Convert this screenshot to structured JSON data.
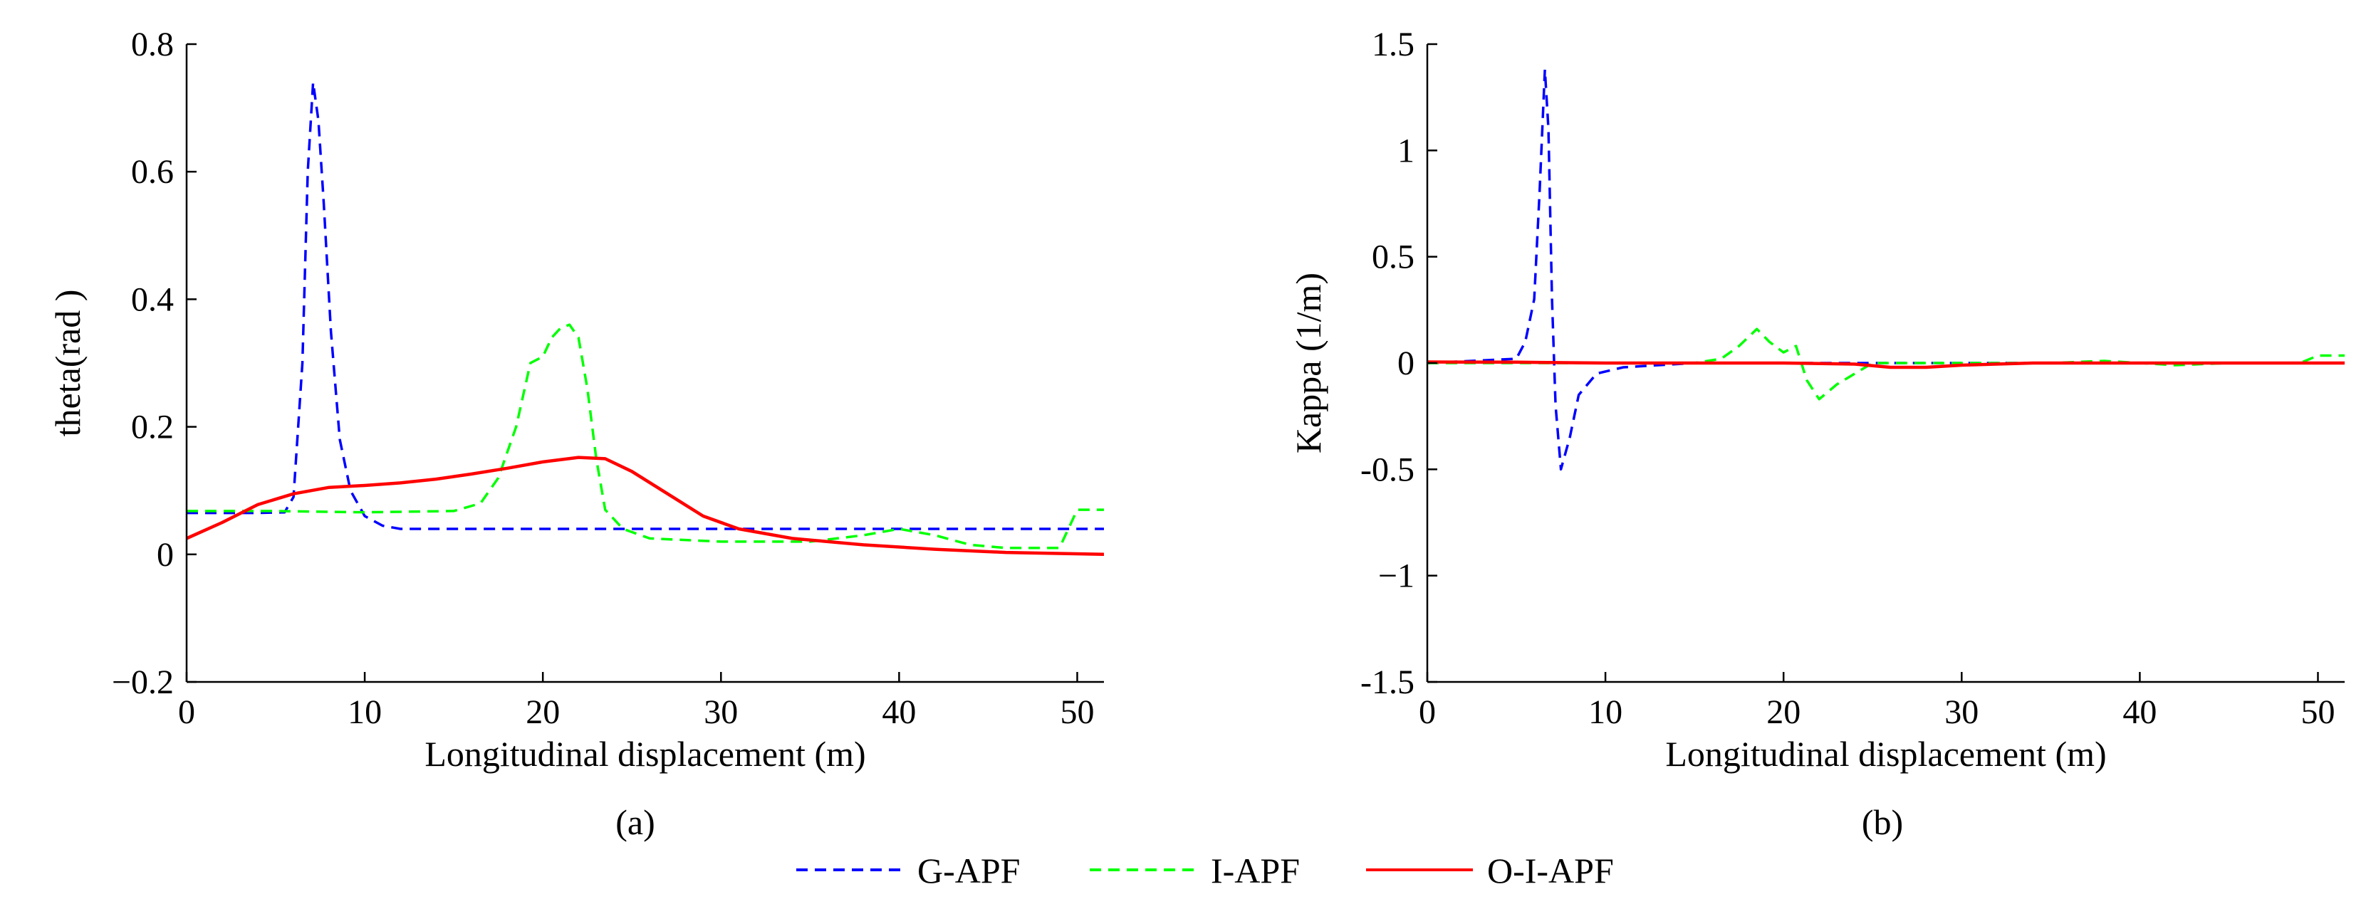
{
  "legend": [
    {
      "name": "G-APF",
      "color": "#0000FF",
      "dash": "dashed"
    },
    {
      "name": "I-APF",
      "color": "#00FF00",
      "dash": "dashed"
    },
    {
      "name": "O-I-APF",
      "color": "#FF0000",
      "dash": "solid"
    }
  ],
  "chart_data": [
    {
      "type": "line",
      "panel_label": "(a)",
      "xlabel": "Longitudinal displacement (m)",
      "ylabel": "theta(rad )",
      "xlim": [
        0,
        51.5
      ],
      "ylim": [
        -0.2,
        0.8
      ],
      "xticks": [
        0,
        10,
        20,
        30,
        40,
        50
      ],
      "yticks": [
        -0.2,
        0,
        0.2,
        0.4,
        0.6,
        0.8
      ],
      "ytick_labels": [
        "−0.2",
        "0",
        "0.2",
        "0.4",
        "0.6",
        "0.8"
      ],
      "grid": false,
      "series": [
        {
          "name": "G-APF",
          "color": "#0000FF",
          "dash": "dashed",
          "x": [
            0,
            4,
            5.5,
            6,
            6.5,
            6.8,
            7.1,
            7.4,
            7.7,
            8.1,
            8.6,
            9.2,
            10,
            11,
            12,
            20,
            30,
            40,
            51.5
          ],
          "y": [
            0.065,
            0.065,
            0.066,
            0.09,
            0.3,
            0.6,
            0.74,
            0.68,
            0.55,
            0.35,
            0.18,
            0.1,
            0.06,
            0.045,
            0.04,
            0.04,
            0.04,
            0.04,
            0.04
          ]
        },
        {
          "name": "I-APF",
          "color": "#00FF00",
          "dash": "dashed",
          "x": [
            0,
            5,
            10,
            15,
            16.5,
            17.5,
            18.5,
            19.3,
            20,
            20.5,
            21,
            21.5,
            22,
            22.5,
            23,
            23.5,
            24.5,
            26,
            30,
            35,
            38,
            40,
            42,
            44,
            46,
            49,
            49.5,
            50,
            51.5
          ],
          "y": [
            0.068,
            0.068,
            0.066,
            0.068,
            0.08,
            0.12,
            0.2,
            0.3,
            0.31,
            0.34,
            0.355,
            0.36,
            0.34,
            0.26,
            0.15,
            0.07,
            0.04,
            0.025,
            0.02,
            0.02,
            0.03,
            0.04,
            0.03,
            0.015,
            0.01,
            0.01,
            0.04,
            0.07,
            0.07
          ]
        },
        {
          "name": "O-I-APF",
          "color": "#FF0000",
          "dash": "solid",
          "x": [
            0,
            2,
            4,
            6,
            8,
            10,
            12,
            14,
            16,
            18,
            20,
            22,
            23.5,
            25,
            27,
            29,
            31,
            34,
            38,
            42,
            46,
            51.5
          ],
          "y": [
            0.025,
            0.05,
            0.078,
            0.095,
            0.105,
            0.108,
            0.112,
            0.118,
            0.126,
            0.135,
            0.145,
            0.152,
            0.15,
            0.13,
            0.095,
            0.06,
            0.04,
            0.025,
            0.015,
            0.008,
            0.003,
            0
          ]
        }
      ]
    },
    {
      "type": "line",
      "panel_label": "(b)",
      "xlabel": "Longitudinal displacement (m)",
      "ylabel": "Kappa (1/m)",
      "xlim": [
        0,
        51.5
      ],
      "ylim": [
        -1.5,
        1.5
      ],
      "xticks": [
        0,
        10,
        20,
        30,
        40,
        50
      ],
      "yticks": [
        -1.5,
        -1,
        -0.5,
        0,
        0.5,
        1,
        1.5
      ],
      "ytick_labels": [
        "-1.5",
        "−1",
        "-0.5",
        "0",
        "0.5",
        "1",
        "1.5"
      ],
      "grid": false,
      "series": [
        {
          "name": "G-APF",
          "color": "#0000FF",
          "dash": "dashed",
          "x": [
            0,
            5,
            5.5,
            6,
            6.3,
            6.6,
            6.8,
            7,
            7.2,
            7.5,
            8,
            8.5,
            9.5,
            11,
            15,
            20,
            25,
            30,
            40,
            51.5
          ],
          "y": [
            0,
            0.02,
            0.1,
            0.3,
            0.8,
            1.38,
            1.1,
            0.3,
            -0.2,
            -0.5,
            -0.35,
            -0.15,
            -0.05,
            -0.02,
            0,
            0,
            0,
            0,
            0,
            0
          ]
        },
        {
          "name": "I-APF",
          "color": "#00FF00",
          "dash": "dashed",
          "x": [
            0,
            5,
            10,
            15,
            16.5,
            17.5,
            18.5,
            19.2,
            20,
            20.7,
            21.3,
            22,
            23,
            24,
            25,
            30,
            35,
            38,
            40,
            42,
            45,
            49,
            50,
            51.5
          ],
          "y": [
            0,
            0,
            0,
            0,
            0.02,
            0.08,
            0.16,
            0.1,
            0.05,
            0.08,
            -0.08,
            -0.17,
            -0.1,
            -0.05,
            0,
            0,
            0,
            0.01,
            0,
            -0.01,
            0,
            0,
            0.035,
            0.035
          ]
        },
        {
          "name": "O-I-APF",
          "color": "#FF0000",
          "dash": "solid",
          "x": [
            0,
            5,
            10,
            15,
            20,
            24,
            26,
            28,
            30,
            34,
            40,
            51.5
          ],
          "y": [
            0.005,
            0.004,
            0,
            0,
            0,
            -0.005,
            -0.02,
            -0.02,
            -0.01,
            0,
            0,
            0
          ]
        }
      ]
    }
  ]
}
